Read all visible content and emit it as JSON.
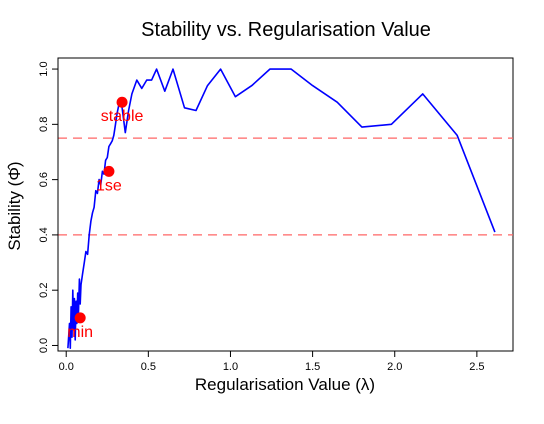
{
  "chart_data": {
    "type": "line",
    "title": "Stability vs. Regularisation Value",
    "xlabel": "Regularisation Value (λ)",
    "ylabel": "Stability (Φ̂)",
    "xlim": [
      -0.05,
      2.72
    ],
    "ylim": [
      -0.02,
      1.04
    ],
    "x_ticks": [
      0.0,
      0.5,
      1.0,
      1.5,
      2.0,
      2.5
    ],
    "x_tick_labels": [
      "0.0",
      "0.5",
      "1.0",
      "1.5",
      "2.0",
      "2.5"
    ],
    "y_ticks": [
      0.0,
      0.2,
      0.4,
      0.6,
      0.8,
      1.0
    ],
    "y_tick_labels": [
      "0.0",
      "0.2",
      "0.4",
      "0.6",
      "0.8",
      "1.0"
    ],
    "grid": false,
    "series": [
      {
        "color": "#0000ff",
        "x": [
          0.01,
          0.02,
          0.025,
          0.03,
          0.035,
          0.04,
          0.045,
          0.05,
          0.055,
          0.06,
          0.065,
          0.07,
          0.075,
          0.08,
          0.085,
          0.09,
          0.1,
          0.11,
          0.12,
          0.13,
          0.14,
          0.15,
          0.16,
          0.17,
          0.18,
          0.19,
          0.2,
          0.21,
          0.22,
          0.23,
          0.24,
          0.25,
          0.26,
          0.27,
          0.28,
          0.29,
          0.3,
          0.31,
          0.32,
          0.33,
          0.34,
          0.36,
          0.38,
          0.4,
          0.43,
          0.46,
          0.49,
          0.52,
          0.55,
          0.6,
          0.65,
          0.72,
          0.79,
          0.86,
          0.94,
          1.03,
          1.13,
          1.24,
          1.37,
          1.5,
          1.65,
          1.8,
          1.98,
          2.17,
          2.38,
          2.61
        ],
        "y": [
          -0.01,
          0.08,
          -0.01,
          0.14,
          0.03,
          0.2,
          0.06,
          0.17,
          0.02,
          0.16,
          0.08,
          0.19,
          0.12,
          0.24,
          0.15,
          0.22,
          0.26,
          0.3,
          0.34,
          0.33,
          0.4,
          0.45,
          0.48,
          0.5,
          0.56,
          0.55,
          0.6,
          0.58,
          0.63,
          0.62,
          0.67,
          0.68,
          0.72,
          0.73,
          0.74,
          0.76,
          0.8,
          0.84,
          0.87,
          0.88,
          0.86,
          0.77,
          0.85,
          0.91,
          0.96,
          0.93,
          0.96,
          0.96,
          1.0,
          0.92,
          1.0,
          0.86,
          0.85,
          0.94,
          1.0,
          0.9,
          0.94,
          1.0,
          1.0,
          0.94,
          0.88,
          0.79,
          0.8,
          0.91,
          0.76,
          0.41
        ]
      }
    ],
    "hlines": [
      {
        "y": 0.75,
        "color": "#ff6666",
        "style": "dashed"
      },
      {
        "y": 0.4,
        "color": "#ff6666",
        "style": "dashed"
      }
    ],
    "annotations": [
      {
        "label": "min",
        "x": 0.085,
        "y": 0.1,
        "color": "#ff0000"
      },
      {
        "label": "1se",
        "x": 0.26,
        "y": 0.63,
        "color": "#ff0000"
      },
      {
        "label": "stable",
        "x": 0.34,
        "y": 0.88,
        "color": "#ff0000"
      }
    ]
  }
}
